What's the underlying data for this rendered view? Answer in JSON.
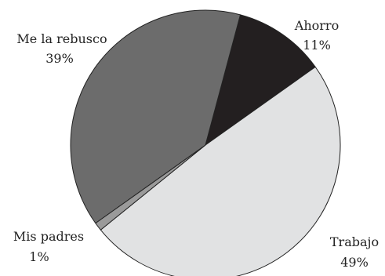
{
  "chart_data": {
    "type": "pie",
    "title": "",
    "slices": [
      {
        "label": "Ahorro",
        "pct_text": "11%",
        "value": 11,
        "color": "#231f20"
      },
      {
        "label": "Trabajo",
        "pct_text": "49%",
        "value": 49,
        "color": "#e1e2e3"
      },
      {
        "label": "Mis padres",
        "pct_text": "1%",
        "value": 1,
        "color": "#9a9a9a"
      },
      {
        "label": "Me la rebusco",
        "pct_text": "39%",
        "value": 39,
        "color": "#6c6c6c"
      }
    ],
    "start_angle_deg": 15,
    "direction": "clockwise",
    "legend": "none",
    "label_placement": "outside"
  }
}
